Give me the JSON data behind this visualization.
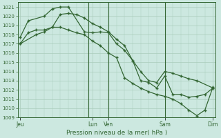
{
  "bg_color": "#cce8e0",
  "grid_color": "#aaccbb",
  "line_color": "#336633",
  "xlabel": "Pression niveau de la mer( hPa )",
  "ylim": [
    1009,
    1021.5
  ],
  "yticks": [
    1009,
    1010,
    1011,
    1012,
    1013,
    1014,
    1015,
    1016,
    1017,
    1018,
    1019,
    1020,
    1021
  ],
  "xtick_labels": [
    "Jeu",
    "Lun",
    "Ven",
    "Sam",
    "Dim"
  ],
  "xtick_positions": [
    0,
    9,
    11,
    18,
    24
  ],
  "vline_positions": [
    8.5,
    11.0,
    18.0
  ],
  "series1_x": [
    0,
    1,
    3,
    4,
    5,
    6,
    8,
    9,
    10,
    11,
    12,
    13,
    14,
    15,
    16,
    17,
    18,
    19,
    20,
    21,
    22,
    23,
    24
  ],
  "series1_y": [
    1017.7,
    1019.5,
    1020.0,
    1020.8,
    1021.0,
    1021.0,
    1018.3,
    1018.2,
    1018.3,
    1018.2,
    1017.0,
    1016.3,
    1015.2,
    1013.0,
    1012.8,
    1012.2,
    1013.5,
    1011.5,
    1011.5,
    1011.2,
    1011.3,
    1011.5,
    1012.2
  ],
  "series2_x": [
    0,
    2,
    3,
    4,
    5,
    6,
    7,
    8,
    9,
    10,
    11,
    12,
    13,
    14,
    15,
    16,
    17,
    18,
    19,
    20,
    21,
    22,
    24
  ],
  "series2_y": [
    1017.0,
    1018.0,
    1018.3,
    1018.8,
    1020.2,
    1020.3,
    1020.2,
    1019.8,
    1019.2,
    1018.8,
    1018.3,
    1017.5,
    1016.8,
    1015.2,
    1014.0,
    1013.0,
    1012.8,
    1014.0,
    1013.8,
    1013.5,
    1013.2,
    1013.0,
    1012.2
  ],
  "series3_x": [
    0,
    1,
    2,
    3,
    4,
    5,
    6,
    7,
    8,
    9,
    10,
    11,
    12,
    13,
    14,
    15,
    16,
    17,
    18,
    19,
    20,
    21,
    22,
    23,
    24
  ],
  "series3_y": [
    1017.0,
    1018.2,
    1018.5,
    1018.5,
    1018.8,
    1018.8,
    1018.5,
    1018.2,
    1018.0,
    1017.3,
    1016.8,
    1016.0,
    1015.5,
    1013.3,
    1012.7,
    1012.2,
    1011.8,
    1011.5,
    1011.3,
    1011.0,
    1010.5,
    1009.8,
    1009.2,
    1009.8,
    1012.3
  ],
  "marker_size": 3.5,
  "linewidth": 0.9
}
